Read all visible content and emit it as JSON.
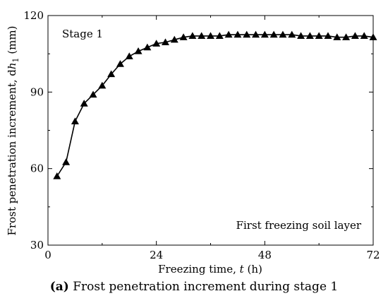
{
  "chart_data": {
    "type": "line",
    "marker": "triangle",
    "color": "#000000",
    "x": [
      2,
      4,
      6,
      8,
      10,
      12,
      14,
      16,
      18,
      20,
      22,
      24,
      26,
      28,
      30,
      32,
      34,
      36,
      38,
      40,
      42,
      44,
      46,
      48,
      50,
      52,
      54,
      56,
      58,
      60,
      62,
      64,
      66,
      68,
      70,
      72
    ],
    "y": [
      57,
      62.5,
      78.5,
      85.5,
      89,
      92.5,
      97,
      101,
      104,
      106,
      107.5,
      109,
      109.5,
      110.5,
      111.5,
      112,
      112,
      112,
      112,
      112.5,
      112.5,
      112.5,
      112.5,
      112.5,
      112.5,
      112.5,
      112.5,
      112,
      112,
      112,
      112,
      111.5,
      111.5,
      112,
      112,
      111.5
    ],
    "xlim": [
      0,
      72
    ],
    "ylim": [
      30,
      120
    ],
    "xticks": [
      0,
      24,
      48,
      72
    ],
    "yticks": [
      30,
      60,
      90,
      120
    ],
    "xlabel": "Freezing time, t (h)",
    "ylabel": "Frost penetration increment, dh1 (mm)",
    "grid": false,
    "annotations": {
      "stage": "Stage 1",
      "layer": "First freezing soil layer"
    }
  },
  "labels": {
    "xlabel_prefix": "Freezing time, ",
    "xlabel_var": "t",
    "xlabel_suffix": " (h)",
    "ylabel_prefix": "Frost penetration increment, d",
    "ylabel_var": "h",
    "ylabel_sub": "1",
    "ylabel_suffix": " (mm)"
  },
  "caption": {
    "tag": "(a)",
    "text": " Frost penetration increment during stage 1"
  }
}
